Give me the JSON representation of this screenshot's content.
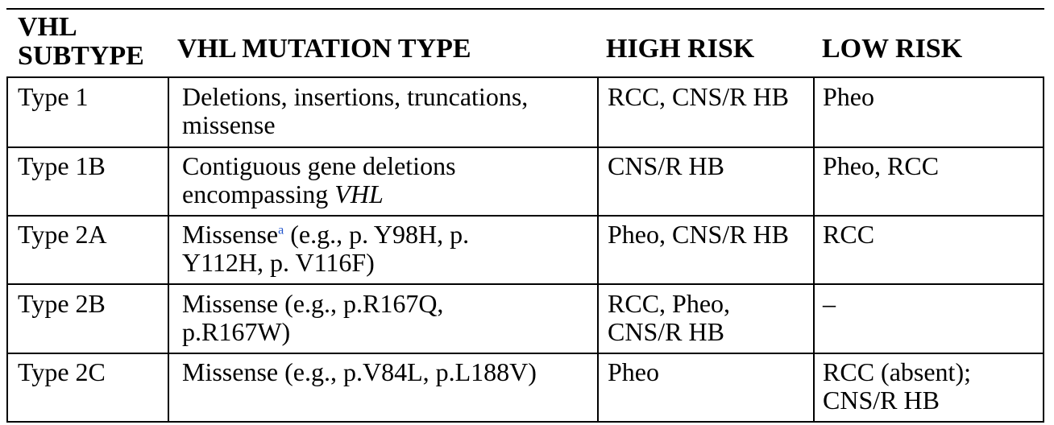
{
  "headers": {
    "subtype": "VHL\nSUBTYPE",
    "mutation": "VHL MUTATION TYPE",
    "high": "HIGH RISK",
    "low": "LOW RISK"
  },
  "rows": [
    {
      "subtype": "Type 1",
      "mutation": "Deletions, insertions, truncations,\nmissense",
      "high": "RCC, CNS/R HB",
      "low": "Pheo"
    },
    {
      "subtype": "Type 1B",
      "mutation_pre": "Contiguous gene deletions\nencompassing ",
      "mutation_italic": "VHL",
      "high": "CNS/R HB",
      "low": "Pheo, RCC"
    },
    {
      "subtype": "Type 2A",
      "mutation_pre": "Missense",
      "mutation_sup": "a",
      "mutation_post": " (e.g., p. Y98H, p.\nY112H, p. V116F)",
      "high": "Pheo, CNS/R HB",
      "low": "RCC"
    },
    {
      "subtype": "Type 2B",
      "mutation": "Missense (e.g., p.R167Q,\np.R167W)",
      "high": "RCC, Pheo,\nCNS/R HB",
      "low": "–"
    },
    {
      "subtype": "Type 2C",
      "mutation": "Missense (e.g., p.V84L, p.L188V)",
      "high": "Pheo",
      "low": "RCC (absent);\nCNS/R HB"
    }
  ]
}
